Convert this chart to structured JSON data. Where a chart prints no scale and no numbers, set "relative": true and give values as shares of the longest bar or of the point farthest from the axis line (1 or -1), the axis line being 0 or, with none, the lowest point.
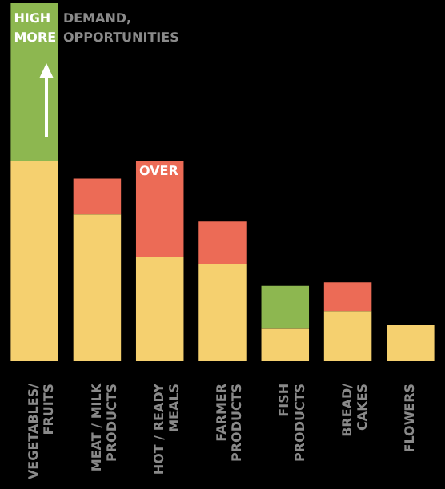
{
  "chart_data": {
    "type": "bar",
    "relative": true,
    "stacked": true,
    "legend": false,
    "categories": [
      "VEGETABLES/ FRUITS",
      "MEAT / MILK PRODUCTS",
      "HOT / READY MEALS",
      "FARMER PRODUCTS",
      "FISH PRODUCTS",
      "BREAD/ CAKES",
      "FLOWERS"
    ],
    "series": [
      {
        "color": "#f5d06f",
        "values": [
          0.56,
          0.41,
          0.29,
          0.27,
          0.09,
          0.14,
          0.1
        ]
      },
      {
        "color": "#8db750",
        "values": [
          0.44,
          null,
          null,
          null,
          0.12,
          null,
          null
        ]
      },
      {
        "color": "#ec6b56",
        "values": [
          null,
          0.1,
          0.27,
          0.12,
          null,
          0.08,
          null
        ]
      }
    ],
    "annotations": [
      "HIGH",
      "MORE",
      "DEMAND,",
      "OPPORTUNITIES",
      "OVER"
    ]
  }
}
